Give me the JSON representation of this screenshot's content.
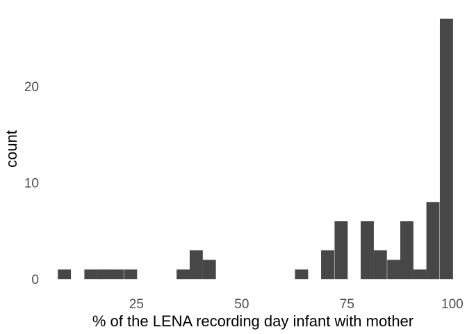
{
  "chart_data": {
    "type": "bar",
    "xlabel": "% of the LENA recording day infant with mother",
    "ylabel": "count",
    "xlim": [
      3.5,
      101.5
    ],
    "ylim": [
      -1.5,
      28.5
    ],
    "bin_width": 3.12,
    "x_ticks": [
      {
        "value": 25,
        "label": "25"
      },
      {
        "value": 50,
        "label": "50"
      },
      {
        "value": 75,
        "label": "75"
      },
      {
        "value": 100,
        "label": "100"
      }
    ],
    "y_ticks": [
      {
        "value": 0,
        "label": "0"
      },
      {
        "value": 10,
        "label": "10"
      },
      {
        "value": 20,
        "label": "20"
      }
    ],
    "bins": [
      {
        "x": 7.9,
        "count": 1
      },
      {
        "x": 11.1,
        "count": 0
      },
      {
        "x": 14.2,
        "count": 1
      },
      {
        "x": 17.3,
        "count": 1
      },
      {
        "x": 20.4,
        "count": 1
      },
      {
        "x": 23.6,
        "count": 1
      },
      {
        "x": 26.7,
        "count": 0
      },
      {
        "x": 29.8,
        "count": 0
      },
      {
        "x": 32.9,
        "count": 0
      },
      {
        "x": 36.1,
        "count": 1
      },
      {
        "x": 39.2,
        "count": 3
      },
      {
        "x": 42.3,
        "count": 2
      },
      {
        "x": 45.4,
        "count": 0
      },
      {
        "x": 48.6,
        "count": 0
      },
      {
        "x": 51.7,
        "count": 0
      },
      {
        "x": 54.8,
        "count": 0
      },
      {
        "x": 57.9,
        "count": 0
      },
      {
        "x": 61.1,
        "count": 0
      },
      {
        "x": 64.2,
        "count": 1
      },
      {
        "x": 67.3,
        "count": 0
      },
      {
        "x": 70.4,
        "count": 3
      },
      {
        "x": 73.6,
        "count": 6
      },
      {
        "x": 76.7,
        "count": 0
      },
      {
        "x": 79.8,
        "count": 6
      },
      {
        "x": 82.9,
        "count": 3
      },
      {
        "x": 86.1,
        "count": 2
      },
      {
        "x": 89.2,
        "count": 6
      },
      {
        "x": 92.3,
        "count": 1
      },
      {
        "x": 95.4,
        "count": 8
      },
      {
        "x": 98.6,
        "count": 27
      }
    ],
    "bar_color": "#474747",
    "background": "#ffffff",
    "grid": false,
    "legend": "none"
  }
}
